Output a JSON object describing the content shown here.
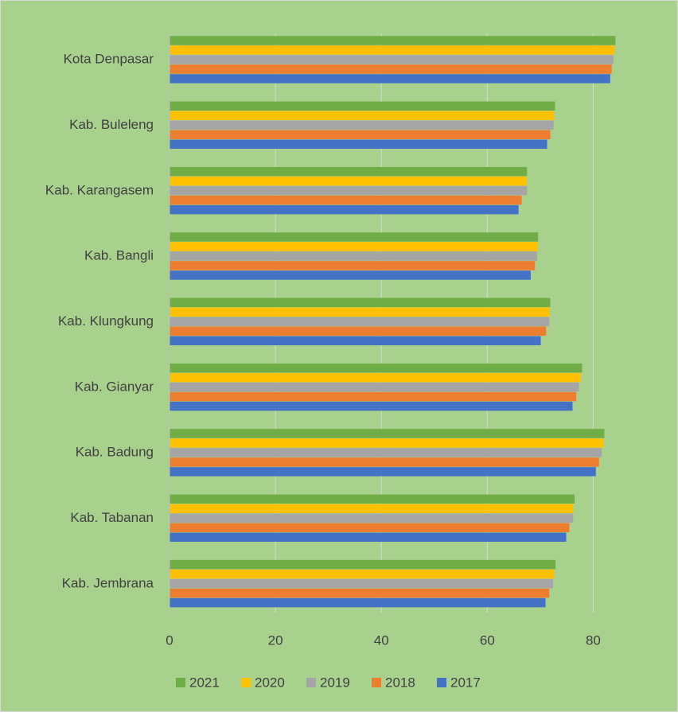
{
  "chart_data": {
    "type": "bar",
    "orientation": "horizontal",
    "categories": [
      "Kota Denpasar",
      "Kab. Buleleng",
      "Kab. Karangasem",
      "Kab. Bangli",
      "Kab. Klungkung",
      "Kab. Gianyar",
      "Kab. Badung",
      "Kab. Tabanan",
      "Kab. Jembrana"
    ],
    "series": [
      {
        "name": "2021",
        "color": "#70ad47",
        "values": [
          84.2,
          72.8,
          67.5,
          69.6,
          71.9,
          77.9,
          82.1,
          76.5,
          72.9
        ]
      },
      {
        "name": "2020",
        "color": "#ffc000",
        "values": [
          84.0,
          72.6,
          67.4,
          69.5,
          71.7,
          77.6,
          81.9,
          76.2,
          72.6
        ]
      },
      {
        "name": "2019",
        "color": "#a5a5a5",
        "values": [
          83.8,
          72.5,
          67.5,
          69.4,
          71.7,
          77.3,
          81.6,
          76.2,
          72.4
        ]
      },
      {
        "name": "2018",
        "color": "#ed7d31",
        "values": [
          83.5,
          71.9,
          66.5,
          69.0,
          71.1,
          76.8,
          81.1,
          75.5,
          71.7
        ]
      },
      {
        "name": "2017",
        "color": "#4472c4",
        "values": [
          83.2,
          71.3,
          65.9,
          68.2,
          70.1,
          76.1,
          80.5,
          74.9,
          71.0
        ]
      }
    ],
    "xlim": [
      0,
      90
    ],
    "xticks": [
      0,
      20,
      40,
      60,
      80
    ],
    "grid": true,
    "legend": "bottom"
  }
}
